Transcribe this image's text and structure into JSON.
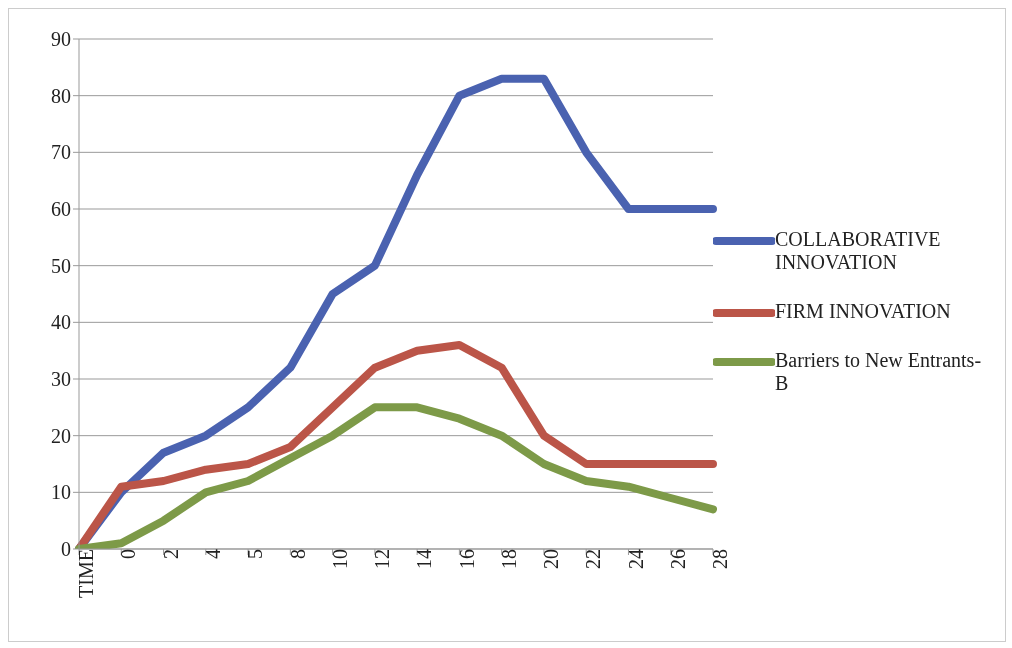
{
  "chart_data": {
    "type": "line",
    "categories": [
      "TIME",
      "0",
      "2",
      "4",
      "5",
      "8",
      "10",
      "12",
      "14",
      "16",
      "18",
      "20",
      "22",
      "24",
      "26",
      "28"
    ],
    "series": [
      {
        "name": "COLLABORATIVE INNOVATION",
        "color": "#4a62b0",
        "values": [
          0,
          10,
          17,
          20,
          25,
          32,
          45,
          50,
          66,
          80,
          83,
          83,
          70,
          60,
          60,
          60
        ]
      },
      {
        "name": "FIRM INNOVATION",
        "color": "#bb5548",
        "values": [
          0,
          11,
          12,
          14,
          15,
          18,
          25,
          32,
          35,
          36,
          32,
          20,
          15,
          15,
          15,
          15
        ]
      },
      {
        "name": "Barriers to New Entrants-B",
        "color": "#7d9a48",
        "values": [
          0,
          1,
          5,
          10,
          12,
          16,
          20,
          25,
          25,
          23,
          20,
          15,
          12,
          11,
          9,
          7
        ]
      }
    ],
    "ylim": [
      0,
      90
    ],
    "yticks": [
      0,
      10,
      20,
      30,
      40,
      50,
      60,
      70,
      80,
      90
    ],
    "grid": "y",
    "legend": "right",
    "marker": "none",
    "line_style": "solid"
  }
}
